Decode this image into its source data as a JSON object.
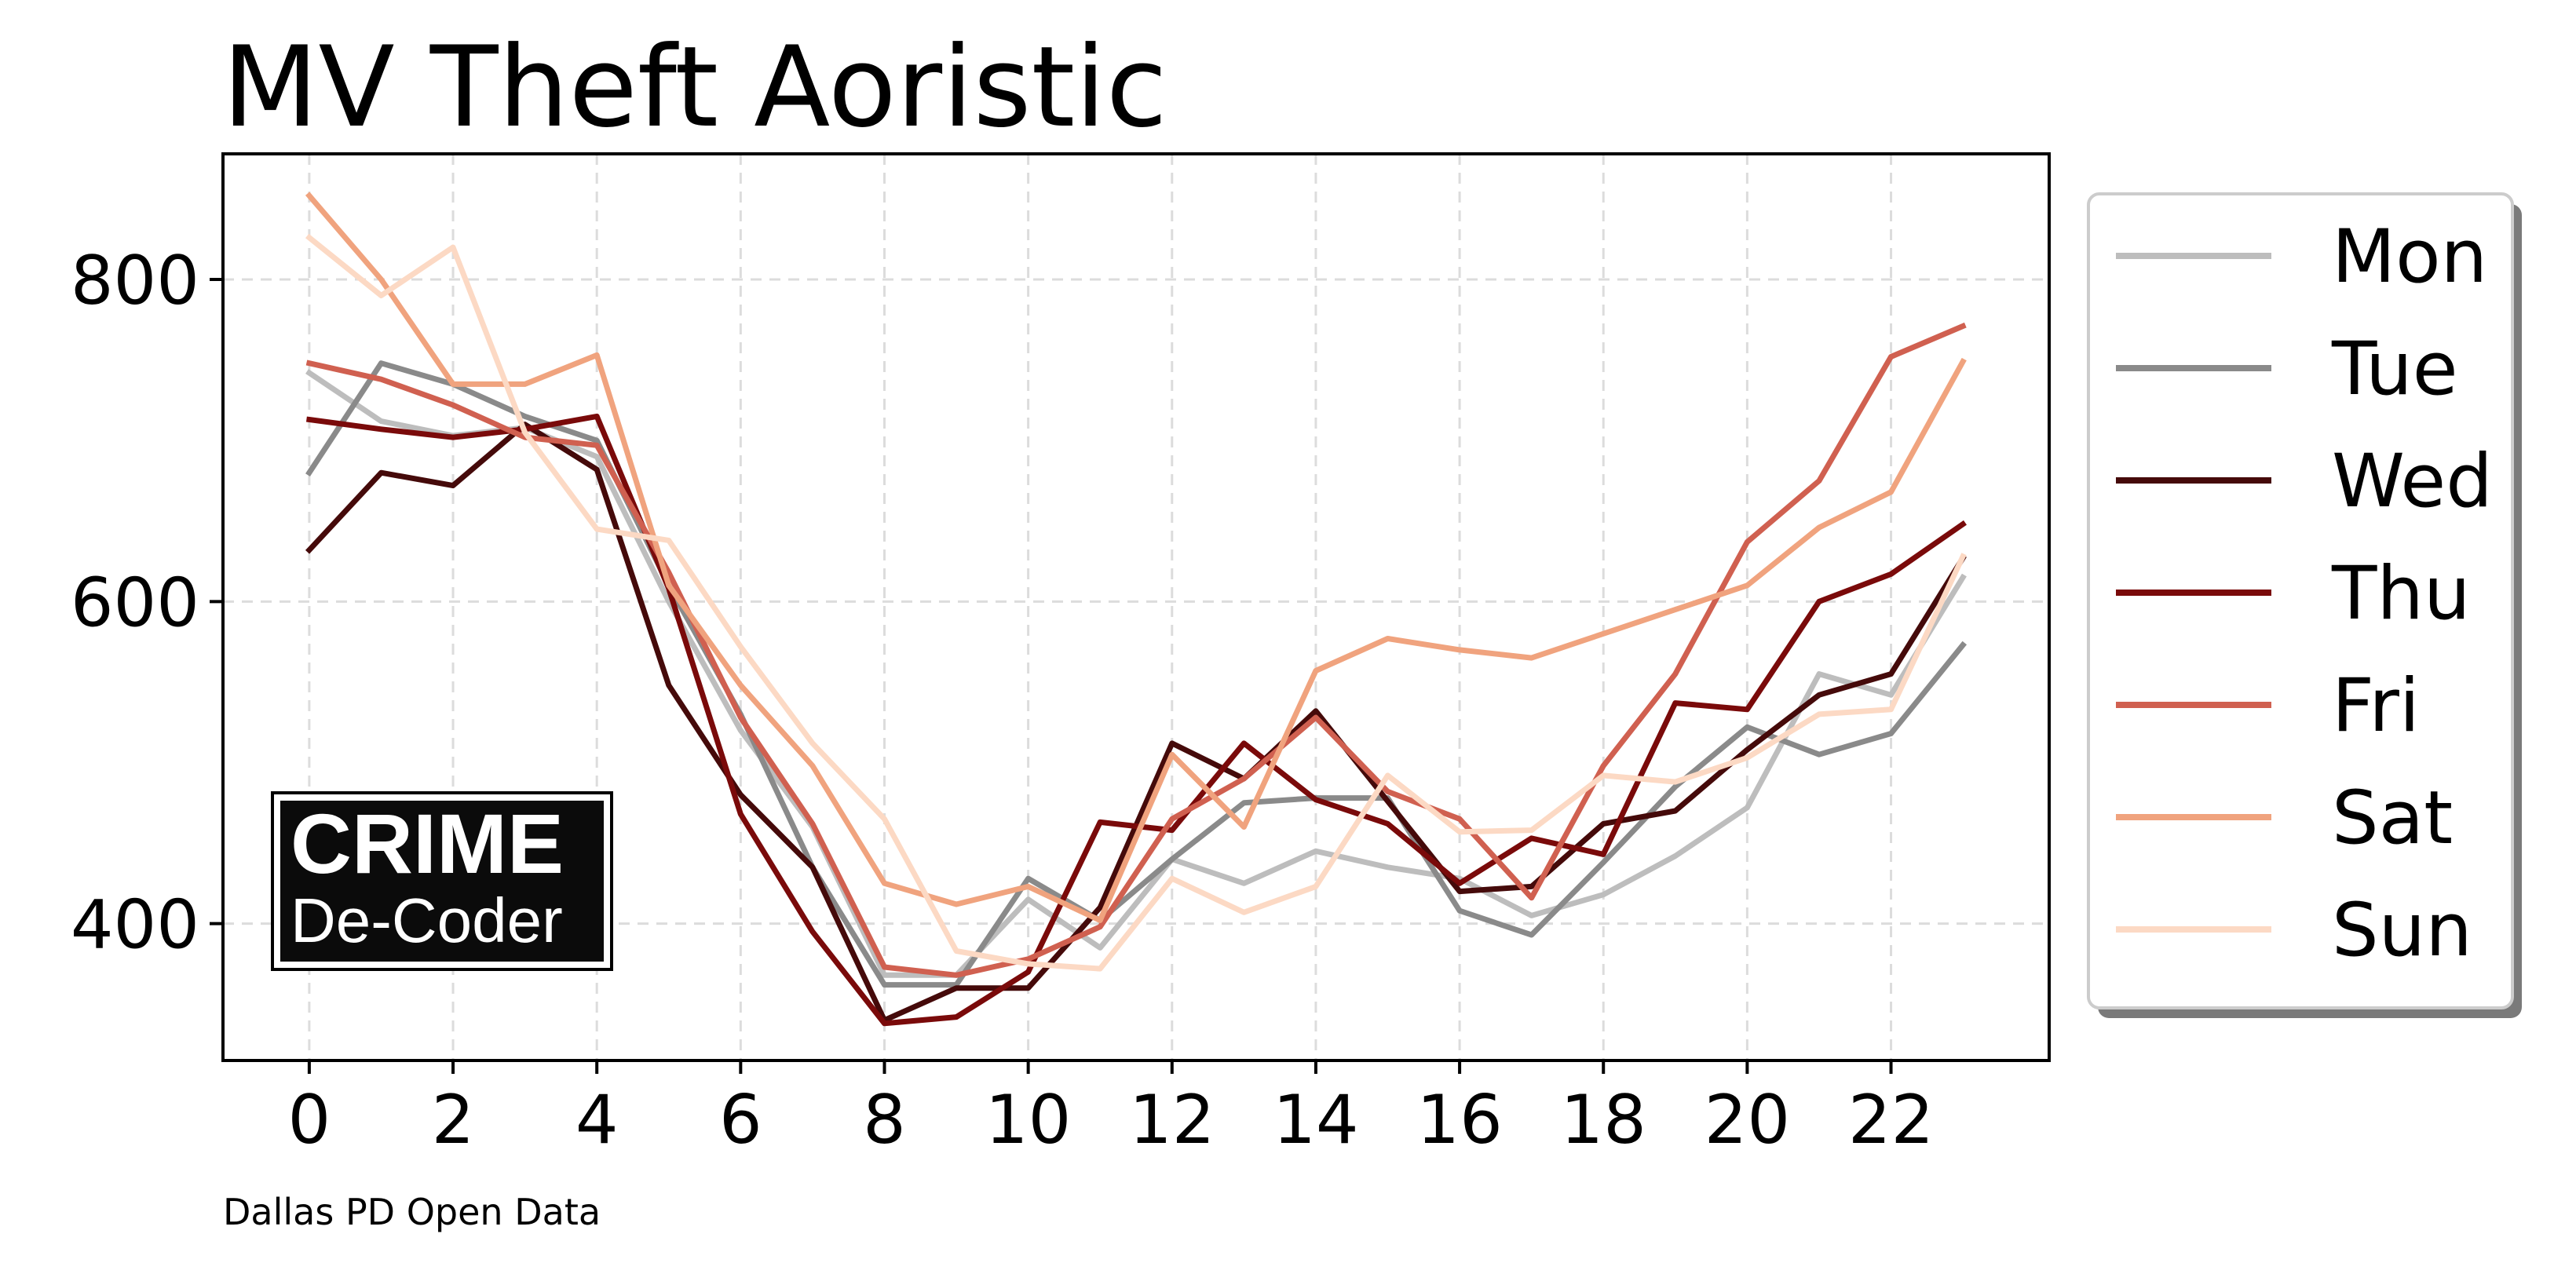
{
  "chart_data": {
    "type": "line",
    "title": "MV Theft Aoristic",
    "xlabel": "",
    "ylabel": "",
    "source": "Dallas PD Open Data",
    "logo": {
      "line1": "CRIME",
      "line2": "De-Coder"
    },
    "xlim": [
      -1.2,
      24.2
    ],
    "ylim": [
      315,
      878
    ],
    "x": [
      0,
      1,
      2,
      3,
      4,
      5,
      6,
      7,
      8,
      9,
      10,
      11,
      12,
      13,
      14,
      15,
      16,
      17,
      18,
      19,
      20,
      21,
      22,
      23
    ],
    "x_ticks": [
      0,
      2,
      4,
      6,
      8,
      10,
      12,
      14,
      16,
      18,
      20,
      22
    ],
    "y_ticks": [
      400,
      600,
      800
    ],
    "grid": true,
    "legend_position": "outside-right",
    "series": [
      {
        "name": "Mon",
        "color": "#bdbdbd",
        "values": [
          742,
          712,
          703,
          708,
          690,
          600,
          520,
          460,
          368,
          368,
          415,
          385,
          440,
          425,
          445,
          435,
          428,
          405,
          418,
          442,
          472,
          555,
          542,
          615
        ]
      },
      {
        "name": "Tue",
        "color": "#8a8a8a",
        "values": [
          680,
          748,
          735,
          715,
          700,
          610,
          530,
          435,
          362,
          362,
          428,
          402,
          440,
          475,
          478,
          478,
          408,
          393,
          438,
          485,
          522,
          505,
          518,
          573
        ]
      },
      {
        "name": "Wed",
        "color": "#450a0a",
        "values": [
          632,
          680,
          672,
          710,
          682,
          548,
          480,
          435,
          340,
          360,
          360,
          410,
          512,
          490,
          532,
          476,
          420,
          423,
          462,
          470,
          508,
          542,
          555,
          627
        ]
      },
      {
        "name": "Thu",
        "color": "#7a0a0a",
        "values": [
          713,
          707,
          702,
          707,
          715,
          608,
          468,
          395,
          338,
          342,
          370,
          463,
          458,
          512,
          477,
          462,
          425,
          453,
          443,
          537,
          533,
          600,
          617,
          648
        ]
      },
      {
        "name": "Fri",
        "color": "#d06050",
        "values": [
          748,
          738,
          722,
          702,
          697,
          618,
          528,
          462,
          373,
          368,
          378,
          398,
          465,
          490,
          528,
          482,
          465,
          416,
          498,
          555,
          637,
          675,
          752,
          771
        ]
      },
      {
        "name": "Sat",
        "color": "#f0a37e",
        "values": [
          852,
          800,
          735,
          735,
          753,
          610,
          548,
          498,
          425,
          412,
          423,
          402,
          505,
          460,
          557,
          577,
          570,
          565,
          580,
          595,
          610,
          646,
          668,
          749
        ]
      },
      {
        "name": "Sun",
        "color": "#fcd9c4",
        "values": [
          826,
          790,
          820,
          705,
          645,
          638,
          572,
          512,
          465,
          383,
          375,
          372,
          428,
          407,
          423,
          492,
          457,
          458,
          492,
          488,
          503,
          530,
          533,
          628
        ]
      }
    ]
  }
}
